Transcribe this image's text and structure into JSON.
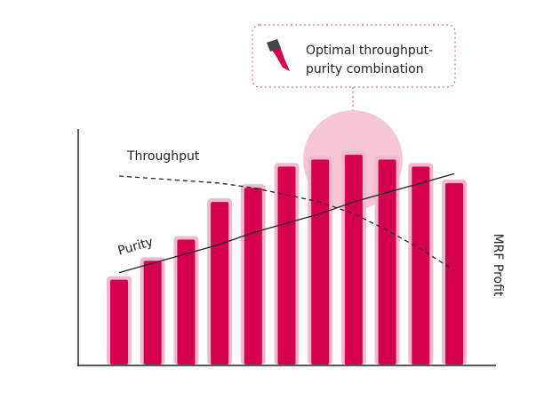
{
  "chart_data": {
    "type": "bar",
    "categories": [
      null,
      null,
      null,
      null,
      null,
      null,
      null,
      null,
      null,
      null,
      null
    ],
    "values": [
      36,
      44,
      53,
      69,
      75,
      84,
      87,
      89,
      87,
      84,
      77
    ],
    "color": "#d4004f",
    "ylim": [
      0,
      100
    ],
    "y_label": "MRF Profit",
    "series": [
      {
        "name": "Throughput",
        "color": "#222222",
        "dashed": true,
        "values": [
          80,
          79,
          78,
          77,
          75,
          72,
          69,
          64,
          57,
          49,
          40
        ]
      },
      {
        "name": "Purity",
        "color": "#222222",
        "dashed": false,
        "values": [
          39,
          43,
          47,
          51,
          56,
          60,
          64,
          69,
          73,
          77,
          81
        ]
      }
    ],
    "annotation": [
      "Optimal throughput-",
      "purity combination"
    ]
  }
}
